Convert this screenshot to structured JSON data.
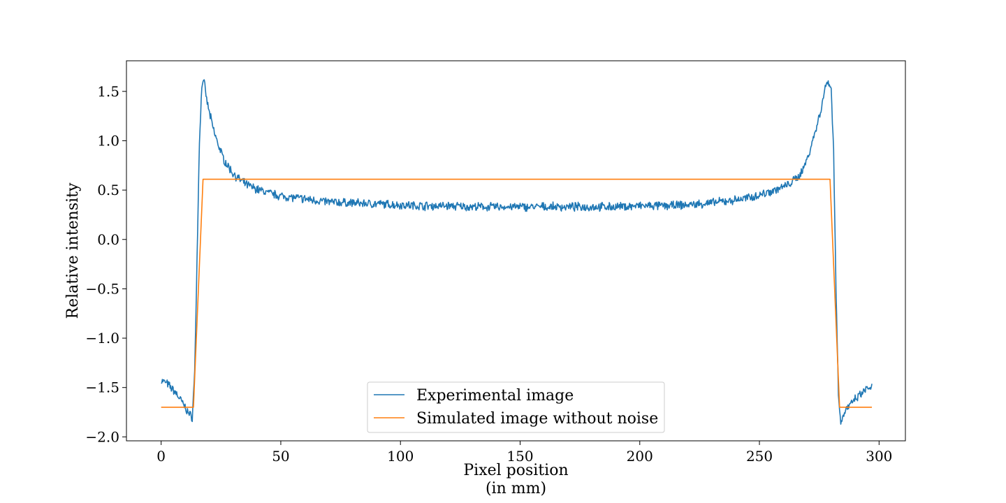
{
  "chart_data": {
    "type": "line",
    "title": "",
    "xlabel": "Pixel position",
    "xlabel_line2": "(in mm)",
    "ylabel": "Relative intensity",
    "xlim": [
      -14.5,
      311
    ],
    "ylim": [
      -2.04,
      1.81
    ],
    "xticks": [
      0,
      50,
      100,
      150,
      200,
      250,
      300
    ],
    "xtick_labels": [
      "0",
      "50",
      "100",
      "150",
      "200",
      "250",
      "300"
    ],
    "yticks": [
      -2.0,
      -1.5,
      -1.0,
      -0.5,
      0.0,
      0.5,
      1.0,
      1.5
    ],
    "ytick_labels": [
      "−2.0",
      "−1.5",
      "−1.0",
      "−0.5",
      "0.0",
      "0.5",
      "1.0",
      "1.5"
    ],
    "grid": false,
    "legend_position": "lower-center",
    "series": [
      {
        "name": "Experimental image",
        "color": "#1f77b4",
        "style": "noisy",
        "x": [
          0,
          2,
          4,
          6,
          8,
          10,
          12,
          13,
          14,
          15,
          16,
          17,
          17.5,
          18,
          19,
          20,
          22,
          24,
          26,
          28,
          30,
          33,
          36,
          40,
          45,
          50,
          60,
          70,
          80,
          90,
          100,
          110,
          120,
          130,
          140,
          150,
          160,
          170,
          180,
          190,
          200,
          210,
          220,
          230,
          240,
          245,
          250,
          255,
          260,
          263,
          266,
          268,
          270,
          272,
          274,
          276,
          277,
          278,
          279,
          280,
          281,
          282,
          283,
          284,
          285,
          286,
          288,
          290,
          292,
          294,
          296,
          297
        ],
        "y": [
          -1.43,
          -1.45,
          -1.5,
          -1.55,
          -1.62,
          -1.7,
          -1.78,
          -1.8,
          -1.35,
          -0.2,
          1.0,
          1.55,
          1.62,
          1.58,
          1.42,
          1.3,
          1.1,
          0.95,
          0.82,
          0.74,
          0.67,
          0.6,
          0.55,
          0.51,
          0.47,
          0.44,
          0.41,
          0.38,
          0.37,
          0.36,
          0.35,
          0.34,
          0.34,
          0.33,
          0.33,
          0.33,
          0.33,
          0.33,
          0.33,
          0.33,
          0.34,
          0.34,
          0.35,
          0.37,
          0.4,
          0.42,
          0.45,
          0.49,
          0.53,
          0.57,
          0.63,
          0.7,
          0.82,
          0.98,
          1.15,
          1.35,
          1.48,
          1.58,
          1.6,
          1.52,
          0.9,
          -0.5,
          -1.55,
          -1.85,
          -1.8,
          -1.72,
          -1.68,
          -1.62,
          -1.58,
          -1.53,
          -1.5,
          -1.49
        ]
      },
      {
        "name": "Simulated image without noise",
        "color": "#ff7f0e",
        "style": "clean",
        "x": [
          0,
          13.5,
          17.5,
          279.5,
          283.5,
          297
        ],
        "y": [
          -1.7,
          -1.7,
          0.61,
          0.61,
          -1.7,
          -1.7
        ]
      }
    ]
  }
}
